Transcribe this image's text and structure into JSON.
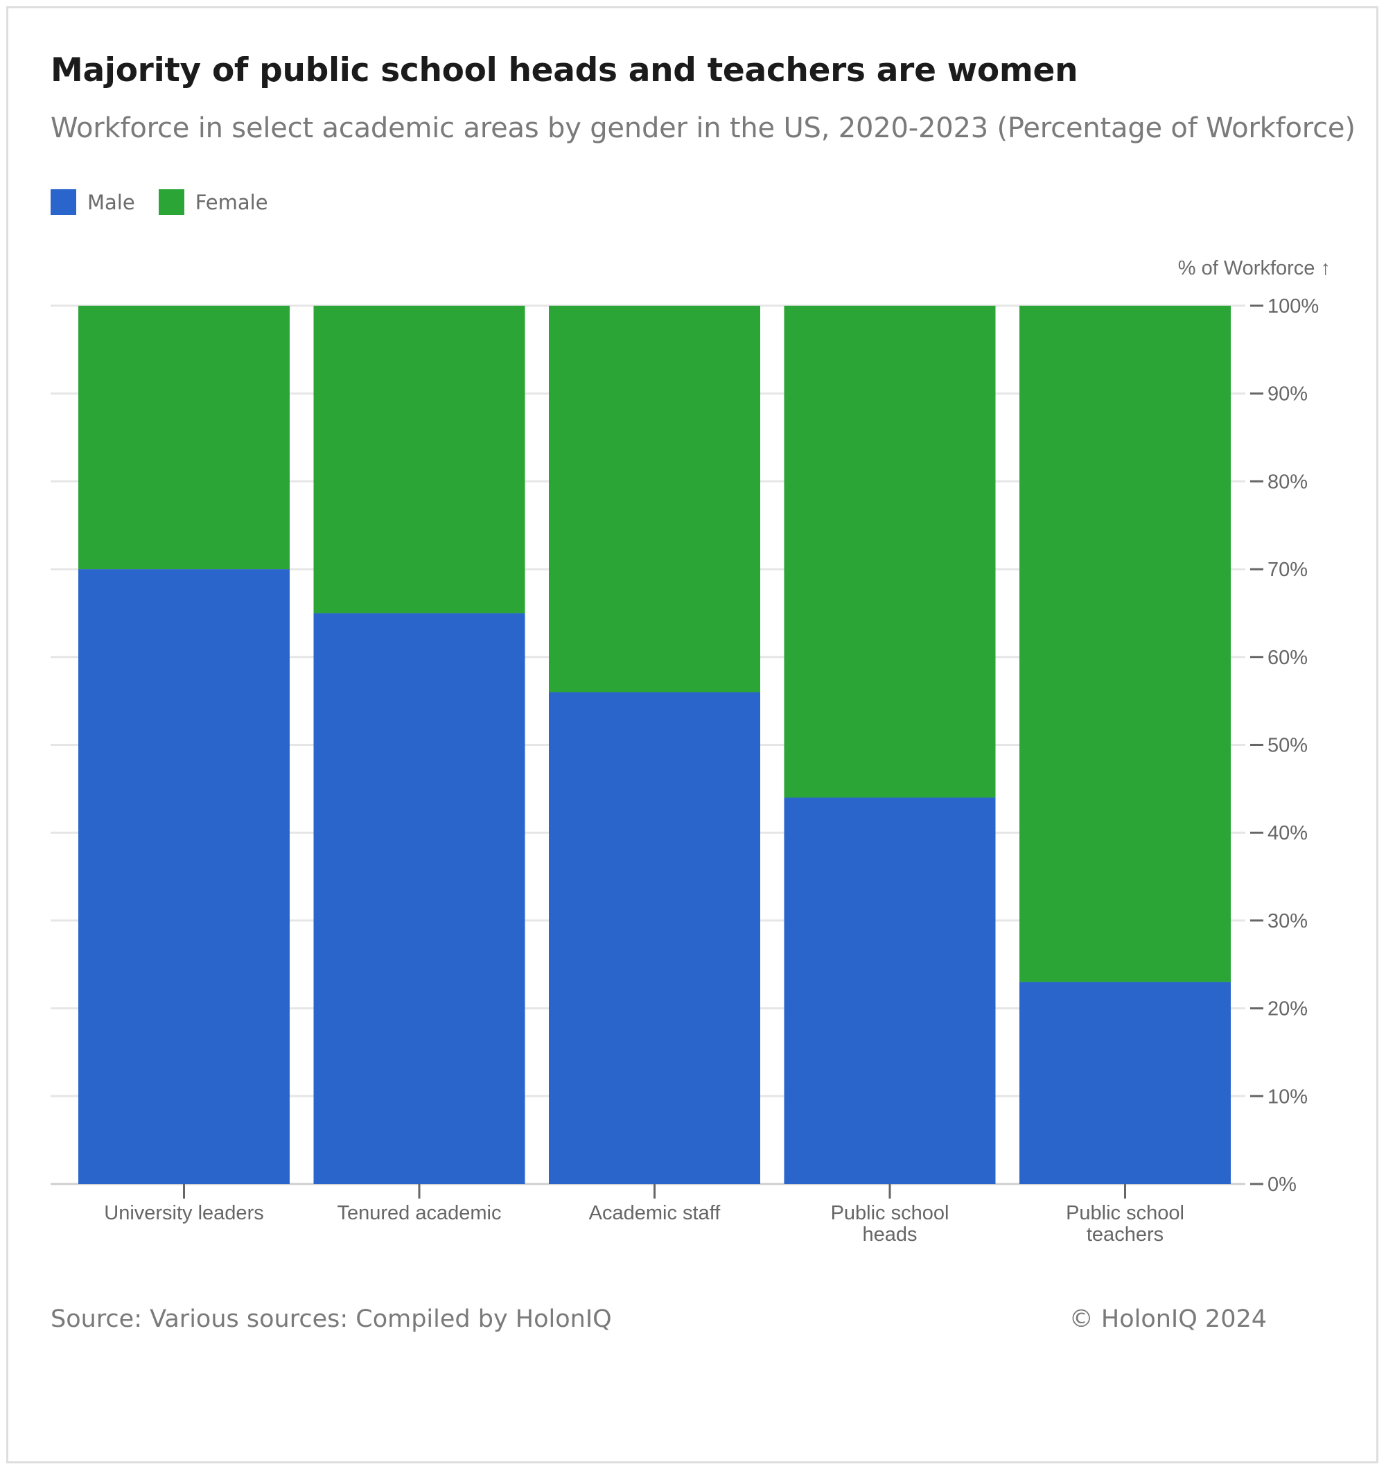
{
  "colors": {
    "male": "#2a65cc",
    "female": "#2ba636",
    "grid": "#e6e6e6",
    "axis": "#666666"
  },
  "chart_data": {
    "type": "bar",
    "stacked": true,
    "title": "Majority of public school heads and teachers are women",
    "subtitle": "Workforce in select academic areas by gender in the US, 2020-2023 (Percentage of Workforce)",
    "ylabel": "% of Workforce ↑",
    "ylim": [
      0,
      100
    ],
    "yticks": [
      "0%",
      "10%",
      "20%",
      "30%",
      "40%",
      "50%",
      "60%",
      "70%",
      "80%",
      "90%",
      "100%"
    ],
    "categories": [
      [
        "University leaders"
      ],
      [
        "Tenured academic"
      ],
      [
        "Academic staff"
      ],
      [
        "Public school",
        "heads"
      ],
      [
        "Public school",
        "teachers"
      ]
    ],
    "series": [
      {
        "name": "Male",
        "color": "#2a65cc",
        "values": [
          70,
          65,
          56,
          44,
          23
        ]
      },
      {
        "name": "Female",
        "color": "#2ba636",
        "values": [
          30,
          35,
          44,
          56,
          77
        ]
      }
    ],
    "legend": "top-left",
    "grid": true
  },
  "footer": {
    "source": "Source: Various sources: Compiled by HolonIQ",
    "copyright": "© HolonIQ 2024"
  }
}
